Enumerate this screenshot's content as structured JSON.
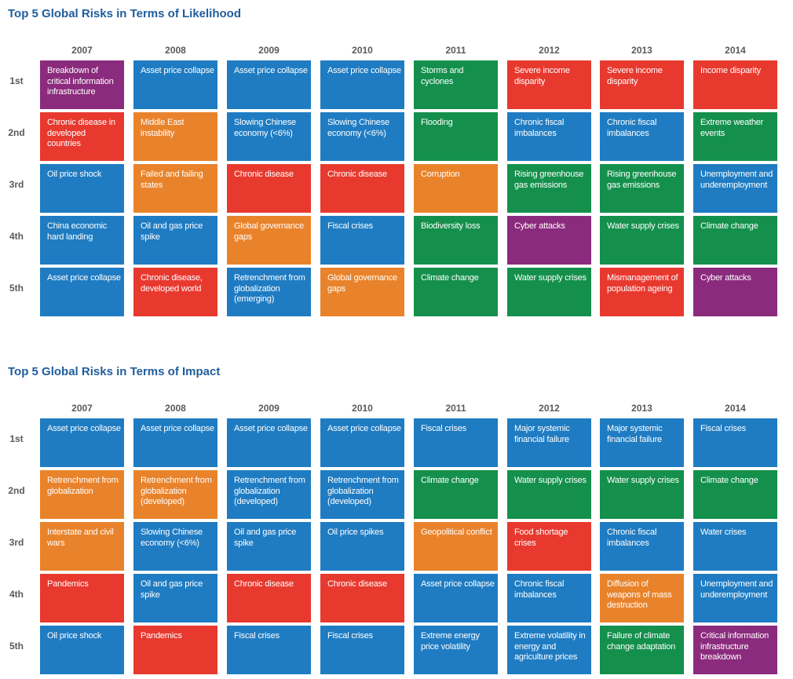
{
  "chart_data": [
    {
      "type": "table",
      "title": "Top 5 Global Risks in Terms of Likelihood",
      "years": [
        "2007",
        "2008",
        "2009",
        "2010",
        "2011",
        "2012",
        "2013",
        "2014"
      ],
      "ranks": [
        "1st",
        "2nd",
        "3rd",
        "4th",
        "5th"
      ],
      "colors": {
        "economic": "#1f7cc2",
        "geopolitical": "#e9832b",
        "societal": "#e8392f",
        "environmental": "#14904c",
        "technological": "#8b2b7d"
      },
      "cells": [
        [
          {
            "label": "Breakdown of critical information infrastructure",
            "color": "purple"
          },
          {
            "label": "Chronic disease in developed countries",
            "color": "red"
          },
          {
            "label": "Oil price shock",
            "color": "blue"
          },
          {
            "label": "China economic hard landing",
            "color": "blue"
          },
          {
            "label": "Asset price collapse",
            "color": "blue"
          }
        ],
        [
          {
            "label": "Asset price collapse",
            "color": "blue"
          },
          {
            "label": "Middle East instability",
            "color": "orange"
          },
          {
            "label": "Failed and failing states",
            "color": "orange"
          },
          {
            "label": "Oil and gas price spike",
            "color": "blue"
          },
          {
            "label": "Chronic disease, developed world",
            "color": "red"
          }
        ],
        [
          {
            "label": "Asset price collapse",
            "color": "blue"
          },
          {
            "label": "Slowing Chinese economy (<6%)",
            "color": "blue"
          },
          {
            "label": "Chronic disease",
            "color": "red"
          },
          {
            "label": "Global governance gaps",
            "color": "orange"
          },
          {
            "label": "Retrenchment from globalization (emerging)",
            "color": "blue"
          }
        ],
        [
          {
            "label": "Asset price collapse",
            "color": "blue"
          },
          {
            "label": "Slowing Chinese economy (<6%)",
            "color": "blue"
          },
          {
            "label": "Chronic disease",
            "color": "red"
          },
          {
            "label": "Fiscal crises",
            "color": "blue"
          },
          {
            "label": "Global governance gaps",
            "color": "orange"
          }
        ],
        [
          {
            "label": "Storms and cyclones",
            "color": "green"
          },
          {
            "label": "Flooding",
            "color": "green"
          },
          {
            "label": "Corruption",
            "color": "orange"
          },
          {
            "label": "Biodiversity loss",
            "color": "green"
          },
          {
            "label": "Climate change",
            "color": "green"
          }
        ],
        [
          {
            "label": "Severe income disparity",
            "color": "red"
          },
          {
            "label": "Chronic fiscal imbalances",
            "color": "blue"
          },
          {
            "label": "Rising greenhouse gas emissions",
            "color": "green"
          },
          {
            "label": "Cyber attacks",
            "color": "purple"
          },
          {
            "label": "Water supply crises",
            "color": "green"
          }
        ],
        [
          {
            "label": "Severe income disparity",
            "color": "red"
          },
          {
            "label": "Chronic fiscal imbalances",
            "color": "blue"
          },
          {
            "label": "Rising greenhouse gas emissions",
            "color": "green"
          },
          {
            "label": "Water supply crises",
            "color": "green"
          },
          {
            "label": "Mismanagement of population ageing",
            "color": "red"
          }
        ],
        [
          {
            "label": "Income disparity",
            "color": "red"
          },
          {
            "label": "Extreme weather events",
            "color": "green"
          },
          {
            "label": "Unemployment and underemployment",
            "color": "blue"
          },
          {
            "label": "Climate change",
            "color": "green"
          },
          {
            "label": "Cyber attacks",
            "color": "purple"
          }
        ]
      ]
    },
    {
      "type": "table",
      "title": "Top 5 Global Risks in Terms of Impact",
      "years": [
        "2007",
        "2008",
        "2009",
        "2010",
        "2011",
        "2012",
        "2013",
        "2014"
      ],
      "ranks": [
        "1st",
        "2nd",
        "3rd",
        "4th",
        "5th"
      ],
      "colors": {
        "economic": "#1f7cc2",
        "geopolitical": "#e9832b",
        "societal": "#e8392f",
        "environmental": "#14904c",
        "technological": "#8b2b7d"
      },
      "cells": [
        [
          {
            "label": "Asset price collapse",
            "color": "blue"
          },
          {
            "label": "Retrenchment from globalization",
            "color": "orange"
          },
          {
            "label": "Interstate and civil wars",
            "color": "orange"
          },
          {
            "label": "Pandemics",
            "color": "red"
          },
          {
            "label": "Oil price shock",
            "color": "blue"
          }
        ],
        [
          {
            "label": "Asset price collapse",
            "color": "blue"
          },
          {
            "label": "Retrenchment from globalization (developed)",
            "color": "orange"
          },
          {
            "label": "Slowing Chinese economy (<6%)",
            "color": "blue"
          },
          {
            "label": "Oil and gas price spike",
            "color": "blue"
          },
          {
            "label": "Pandemics",
            "color": "red"
          }
        ],
        [
          {
            "label": "Asset price collapse",
            "color": "blue"
          },
          {
            "label": "Retrenchment from globalization (developed)",
            "color": "blue"
          },
          {
            "label": "Oil and gas price spike",
            "color": "blue"
          },
          {
            "label": "Chronic disease",
            "color": "red"
          },
          {
            "label": "Fiscal crises",
            "color": "blue"
          }
        ],
        [
          {
            "label": "Asset price collapse",
            "color": "blue"
          },
          {
            "label": "Retrenchment from globalization (developed)",
            "color": "blue"
          },
          {
            "label": "Oil price spikes",
            "color": "blue"
          },
          {
            "label": "Chronic disease",
            "color": "red"
          },
          {
            "label": "Fiscal crises",
            "color": "blue"
          }
        ],
        [
          {
            "label": "Fiscal crises",
            "color": "blue"
          },
          {
            "label": "Climate change",
            "color": "green"
          },
          {
            "label": "Geopolitical conflict",
            "color": "orange"
          },
          {
            "label": "Asset price collapse",
            "color": "blue"
          },
          {
            "label": "Extreme energy price volatility",
            "color": "blue"
          }
        ],
        [
          {
            "label": "Major systemic financial failure",
            "color": "blue"
          },
          {
            "label": "Water supply crises",
            "color": "green"
          },
          {
            "label": "Food shortage crises",
            "color": "red"
          },
          {
            "label": "Chronic fiscal imbalances",
            "color": "blue"
          },
          {
            "label": "Extreme volatility in energy and agriculture prices",
            "color": "blue"
          }
        ],
        [
          {
            "label": "Major systemic financial failure",
            "color": "blue"
          },
          {
            "label": "Water supply crises",
            "color": "green"
          },
          {
            "label": "Chronic fiscal imbalances",
            "color": "blue"
          },
          {
            "label": "Diffusion of weapons of mass destruction",
            "color": "orange"
          },
          {
            "label": "Failure of climate change adaptation",
            "color": "green"
          }
        ],
        [
          {
            "label": "Fiscal crises",
            "color": "blue"
          },
          {
            "label": "Climate change",
            "color": "green"
          },
          {
            "label": "Water crises",
            "color": "blue"
          },
          {
            "label": "Unemployment and underemployment",
            "color": "blue"
          },
          {
            "label": "Critical information infrastructure breakdown",
            "color": "purple"
          }
        ]
      ]
    }
  ]
}
